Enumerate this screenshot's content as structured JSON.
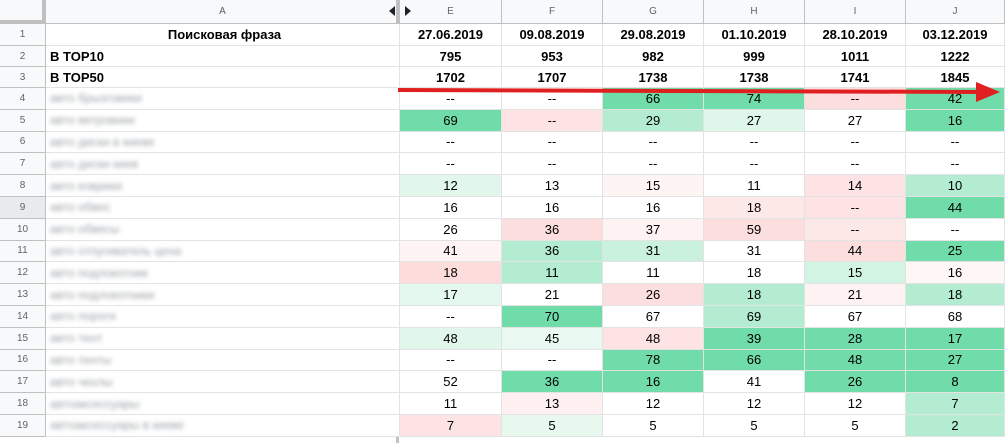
{
  "columns": [
    {
      "letter": "A",
      "date": "Поисковая фраза"
    },
    {
      "letter": "E",
      "date": "27.06.2019"
    },
    {
      "letter": "F",
      "date": "09.08.2019"
    },
    {
      "letter": "G",
      "date": "29.08.2019"
    },
    {
      "letter": "H",
      "date": "01.10.2019"
    },
    {
      "letter": "I",
      "date": "28.10.2019"
    },
    {
      "letter": "J",
      "date": "03.12.2019"
    }
  ],
  "header_labels": {
    "top10": "В TOP10",
    "top50": "В TOP50"
  },
  "top10": [
    "795",
    "953",
    "982",
    "999",
    "1011",
    "1222"
  ],
  "top50": [
    "1702",
    "1707",
    "1738",
    "1738",
    "1741",
    "1845"
  ],
  "rows": [
    {
      "num": "4",
      "phrase": "авто брызговики",
      "vals": [
        "--",
        "--",
        "66",
        "74",
        "--",
        "42"
      ],
      "colors": [
        "#ffffff",
        "#ffffff",
        "#6fdcaa",
        "#6fdcaa",
        "#fddede",
        "#6fdcaa"
      ]
    },
    {
      "num": "5",
      "phrase": "авто ветровики",
      "vals": [
        "69",
        "--",
        "29",
        "27",
        "27",
        "16"
      ],
      "colors": [
        "#6fdcaa",
        "#fde3e3",
        "#b3ecd1",
        "#dff6ea",
        "#ffffff",
        "#6fdcaa"
      ]
    },
    {
      "num": "6",
      "phrase": "авто диски в киеве",
      "vals": [
        "--",
        "--",
        "--",
        "--",
        "--",
        "--"
      ],
      "colors": [
        "#ffffff",
        "#ffffff",
        "#ffffff",
        "#ffffff",
        "#ffffff",
        "#ffffff"
      ]
    },
    {
      "num": "7",
      "phrase": "авто диски киев",
      "vals": [
        "--",
        "--",
        "--",
        "--",
        "--",
        "--"
      ],
      "colors": [
        "#ffffff",
        "#ffffff",
        "#ffffff",
        "#ffffff",
        "#ffffff",
        "#ffffff"
      ]
    },
    {
      "num": "8",
      "phrase": "авто коврики",
      "vals": [
        "12",
        "13",
        "15",
        "11",
        "14",
        "10"
      ],
      "colors": [
        "#e2f7ec",
        "#ffffff",
        "#fef4f4",
        "#ffffff",
        "#fde3e3",
        "#b3ecd1"
      ]
    },
    {
      "num": "9",
      "phrase": "авто обвес",
      "vals": [
        "16",
        "16",
        "16",
        "18",
        "--",
        "44"
      ],
      "colors": [
        "#ffffff",
        "#ffffff",
        "#ffffff",
        "#fde8e8",
        "#fde3e3",
        "#6fdcaa"
      ]
    },
    {
      "num": "10",
      "phrase": "авто обвесы",
      "vals": [
        "26",
        "36",
        "37",
        "59",
        "--",
        "--"
      ],
      "colors": [
        "#ffffff",
        "#fddede",
        "#fef2f2",
        "#fddede",
        "#fde8e8",
        "#ffffff"
      ]
    },
    {
      "num": "11",
      "phrase": "авто отпугиватель цена",
      "vals": [
        "41",
        "36",
        "31",
        "31",
        "44",
        "25"
      ],
      "colors": [
        "#fff4f4",
        "#b3ecd1",
        "#c9f1dd",
        "#ffffff",
        "#fddede",
        "#6fdcaa"
      ]
    },
    {
      "num": "12",
      "phrase": "авто подлокотник",
      "vals": [
        "18",
        "11",
        "11",
        "18",
        "15",
        "16"
      ],
      "colors": [
        "#fddcdc",
        "#b3ecd1",
        "#ffffff",
        "#ffffff",
        "#d2f4e3",
        "#fff6f6"
      ]
    },
    {
      "num": "13",
      "phrase": "авто подлокотники",
      "vals": [
        "17",
        "21",
        "26",
        "18",
        "21",
        "18"
      ],
      "colors": [
        "#e4f8ee",
        "#ffffff",
        "#fddede",
        "#b3ecd1",
        "#fff2f2",
        "#b3ecd1"
      ]
    },
    {
      "num": "14",
      "phrase": "авто пороги",
      "vals": [
        "--",
        "70",
        "67",
        "69",
        "67",
        "68"
      ],
      "colors": [
        "#ffffff",
        "#6fdcaa",
        "#ffffff",
        "#b3ecd1",
        "#ffffff",
        "#ffffff"
      ]
    },
    {
      "num": "15",
      "phrase": "авто тент",
      "vals": [
        "48",
        "45",
        "48",
        "39",
        "28",
        "17"
      ],
      "colors": [
        "#e2f7ec",
        "#e9f9f1",
        "#fde3e3",
        "#6fdcaa",
        "#6fdcaa",
        "#6fdcaa"
      ]
    },
    {
      "num": "16",
      "phrase": "авто тенты",
      "vals": [
        "--",
        "--",
        "78",
        "66",
        "48",
        "27"
      ],
      "colors": [
        "#ffffff",
        "#ffffff",
        "#6fdcaa",
        "#6fdcaa",
        "#6fdcaa",
        "#6fdcaa"
      ]
    },
    {
      "num": "17",
      "phrase": "авто чехлы",
      "vals": [
        "52",
        "36",
        "16",
        "41",
        "26",
        "8"
      ],
      "colors": [
        "#ffffff",
        "#6fdcaa",
        "#6fdcaa",
        "#ffffff",
        "#6fdcaa",
        "#6fdcaa"
      ]
    },
    {
      "num": "18",
      "phrase": "автоаксессуары",
      "vals": [
        "11",
        "13",
        "12",
        "12",
        "12",
        "7"
      ],
      "colors": [
        "#ffffff",
        "#fef0f0",
        "#ffffff",
        "#ffffff",
        "#ffffff",
        "#b3ecd1"
      ]
    },
    {
      "num": "19",
      "phrase": "автоаксессуары в киеве",
      "vals": [
        "7",
        "5",
        "5",
        "5",
        "5",
        "2"
      ],
      "colors": [
        "#fde3e3",
        "#e7f8ef",
        "#ffffff",
        "#ffffff",
        "#ffffff",
        "#b3ecd1"
      ]
    }
  ],
  "arrow_color": "#e02020"
}
